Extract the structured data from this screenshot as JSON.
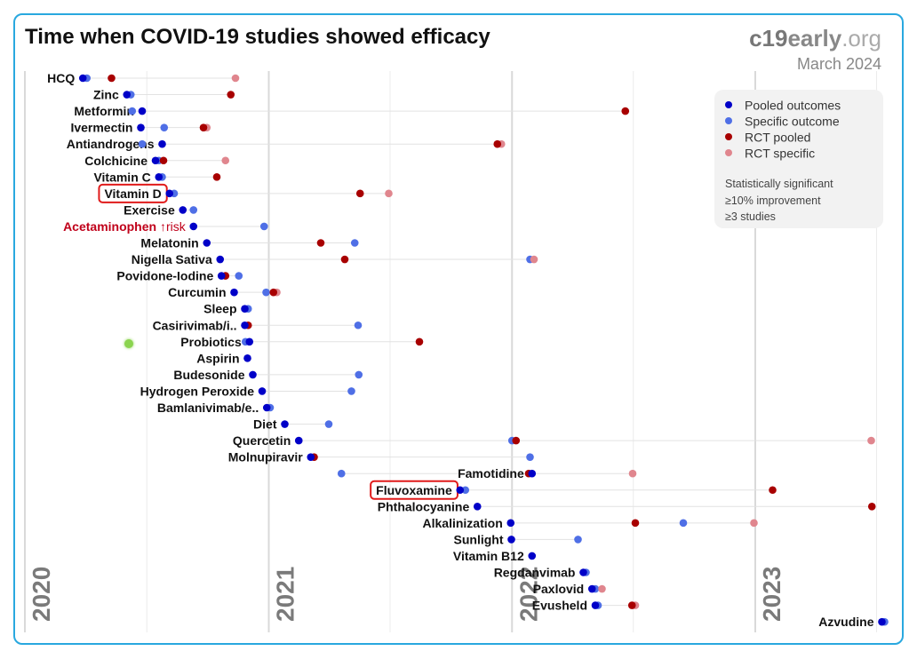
{
  "header": {
    "title": "Time when COVID-19 studies showed efficacy",
    "brand_main": "c19",
    "brand_accent": "early",
    "brand_suffix": ".org",
    "date": "March 2024"
  },
  "legend": {
    "items": [
      {
        "label": "Pooled outcomes",
        "color": "#0000c8"
      },
      {
        "label": "Specific outcome",
        "color": "#4f6fe6"
      },
      {
        "label": "RCT pooled",
        "color": "#a80000"
      },
      {
        "label": "RCT specific",
        "color": "#e0868e"
      }
    ],
    "notes": [
      "Statistically significant",
      "≥10% improvement",
      "≥3 studies"
    ]
  },
  "colors": {
    "pooled": "#0000c8",
    "specific": "#4f6fe6",
    "rct_pooled": "#a80000",
    "rct_specific": "#e0868e",
    "highlight_border": "#e01b1b",
    "risk_text": "#c0001a"
  },
  "chart_data": {
    "type": "scatter",
    "title": "Time when COVID-19 studies showed efficacy",
    "x_axis": "date",
    "xlim": [
      "2020-01-01",
      "2023-07-20"
    ],
    "year_labels": [
      "2020",
      "2021",
      "2022",
      "2023"
    ],
    "grid": "vertical lines at year starts",
    "legend_position": "top-right",
    "treatments": [
      {
        "name": "HCQ",
        "pooled": "2020-03-28",
        "specific": "2020-04-03",
        "rct_pooled": "2020-05-10",
        "rct_specific": "2020-11-12"
      },
      {
        "name": "Zinc",
        "pooled": "2020-06-02",
        "specific": "2020-06-08",
        "rct_pooled": "2020-11-05"
      },
      {
        "name": "Metformin",
        "pooled": "2020-06-25",
        "specific": "2020-06-10",
        "rct_pooled": "2022-06-20"
      },
      {
        "name": "Ivermectin",
        "pooled": "2020-06-23",
        "specific": "2020-07-28",
        "rct_pooled": "2020-09-25",
        "rct_specific": "2020-09-30"
      },
      {
        "name": "Antiandrogens",
        "pooled": "2020-07-25",
        "specific": "2020-06-25",
        "rct_pooled": "2021-12-10",
        "rct_specific": "2021-12-16"
      },
      {
        "name": "Colchicine",
        "pooled": "2020-07-15",
        "specific": "2020-07-20",
        "rct_pooled": "2020-07-27",
        "rct_specific": "2020-10-28"
      },
      {
        "name": "Vitamin C",
        "pooled": "2020-07-20",
        "specific": "2020-07-25",
        "rct_pooled": "2020-10-15"
      },
      {
        "name": "Vitamin D",
        "highlighted": true,
        "pooled": "2020-08-05",
        "specific": "2020-08-12",
        "rct_pooled": "2021-05-18",
        "rct_specific": "2021-06-30"
      },
      {
        "name": "Exercise",
        "pooled": "2020-08-25",
        "specific": "2020-09-10"
      },
      {
        "name": "Acetaminophen",
        "risk": true,
        "risk_suffix": "↑risk",
        "pooled": "2020-09-10",
        "specific": "2020-12-25"
      },
      {
        "name": "Melatonin",
        "pooled": "2020-09-30",
        "specific": "2021-05-10",
        "rct_pooled": "2021-03-20"
      },
      {
        "name": "Nigella Sativa",
        "pooled": "2020-10-20",
        "specific": "2022-01-28",
        "rct_pooled": "2021-04-25",
        "rct_specific": "2022-02-03"
      },
      {
        "name": "Povidone-Iodine",
        "pooled": "2020-10-22",
        "specific": "2020-11-17",
        "rct_pooled": "2020-10-28"
      },
      {
        "name": "Curcumin",
        "pooled": "2020-11-10",
        "specific": "2020-12-28",
        "rct_pooled": "2021-01-08",
        "rct_specific": "2021-01-13"
      },
      {
        "name": "Sleep",
        "pooled": "2020-11-26",
        "specific": "2020-12-01"
      },
      {
        "name": "Casirivimab/i..",
        "pooled": "2020-11-26",
        "specific": "2021-05-15",
        "rct_pooled": "2020-12-01"
      },
      {
        "name": "Probiotics",
        "pooled": "2020-12-03",
        "specific": "2020-11-27",
        "rct_pooled": "2021-08-15"
      },
      {
        "name": "Aspirin",
        "pooled": "2020-11-30"
      },
      {
        "name": "Budesonide",
        "pooled": "2020-12-08",
        "specific": "2021-05-16"
      },
      {
        "name": "Hydrogen Peroxide",
        "pooled": "2020-12-22",
        "specific": "2021-05-05"
      },
      {
        "name": "Bamlanivimab/e..",
        "pooled": "2020-12-29",
        "specific": "2021-01-03"
      },
      {
        "name": "Diet",
        "pooled": "2021-01-25",
        "specific": "2021-04-01"
      },
      {
        "name": "Quercetin",
        "pooled": "2021-02-15",
        "specific": "2022-01-01",
        "rct_pooled": "2022-01-07",
        "rct_specific": "2023-06-24"
      },
      {
        "name": "Molnupiravir",
        "pooled": "2021-03-05",
        "specific": "2022-01-28",
        "rct_pooled": "2021-03-10"
      },
      {
        "name": "Famotidine",
        "pooled": "2022-01-31",
        "specific": "2021-04-20",
        "rct_pooled": "2022-01-26",
        "rct_specific": "2022-07-01"
      },
      {
        "name": "Fluvoxamine",
        "highlighted": true,
        "pooled": "2021-10-15",
        "specific": "2021-10-23",
        "rct_pooled": "2023-01-27"
      },
      {
        "name": "Phthalocyanine",
        "pooled": "2021-11-10",
        "rct_pooled": "2023-06-25"
      },
      {
        "name": "Alkalinization",
        "pooled": "2021-12-30",
        "specific": "2022-09-15",
        "rct_pooled": "2022-07-05",
        "rct_specific": "2022-12-30"
      },
      {
        "name": "Sunlight",
        "pooled": "2021-12-31",
        "specific": "2022-04-10"
      },
      {
        "name": "Vitamin B12",
        "pooled": "2022-01-31"
      },
      {
        "name": "Regdanvimab",
        "pooled": "2022-04-18",
        "specific": "2022-04-22"
      },
      {
        "name": "Paxlovid",
        "pooled": "2022-05-01",
        "specific": "2022-05-06",
        "rct_specific": "2022-05-16"
      },
      {
        "name": "Evusheld",
        "pooled": "2022-05-06",
        "specific": "2022-05-10",
        "rct_pooled": "2022-06-30",
        "rct_specific": "2022-07-05"
      },
      {
        "name": "Azvudine",
        "pooled": "2023-07-10",
        "specific": "2023-07-14"
      }
    ]
  }
}
